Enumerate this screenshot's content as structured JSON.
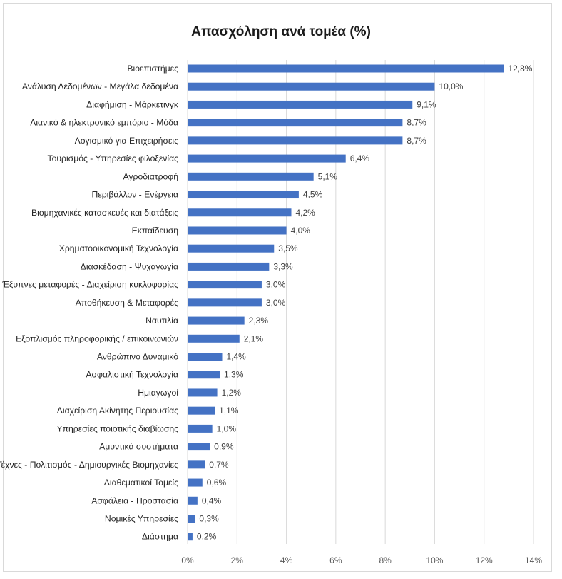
{
  "chart_data": {
    "type": "bar",
    "orientation": "horizontal",
    "title": "Απασχόληση ανά τομέα (%)",
    "xlabel": "",
    "ylabel": "",
    "xlim": [
      0,
      14
    ],
    "x_ticks": [
      "0%",
      "2%",
      "4%",
      "6%",
      "8%",
      "10%",
      "12%",
      "14%"
    ],
    "x_tick_values": [
      0,
      2,
      4,
      6,
      8,
      10,
      12,
      14
    ],
    "grid": "vertical",
    "legend": "none",
    "bar_color": "#4472C4",
    "categories": [
      "Βιοεπιστήμες",
      "Ανάλυση Δεδομένων - Μεγάλα δεδομένα",
      "Διαφήμιση - Μάρκετινγκ",
      "Λιανικό & ηλεκτρονικό εμπόριο - Μόδα",
      "Λογισμικό για Επιχειρήσεις",
      "Τουρισμός - Υπηρεσίες φιλοξενίας",
      "Αγροδιατροφή",
      "Περιβάλλον - Ενέργεια",
      "Βιομηχανικές κατασκευές και διατάξεις",
      "Εκπαίδευση",
      "Χρηματοοικονομική Τεχνολογία",
      "Διασκέδαση - Ψυχαγωγία",
      "Έξυπνες μεταφορές - Διαχείριση κυκλοφορίας",
      "Αποθήκευση & Μεταφορές",
      "Ναυτιλία",
      "Εξοπλισμός πληροφορικής / επικοινωνιών",
      "Ανθρώπινο Δυναμικό",
      "Ασφαλιστική Τεχνολογία",
      "Ημιαγωγοί",
      "Διαχείριση Ακίνητης Περιουσίας",
      "Υπηρεσίες ποιοτικής διαβίωσης",
      "Αμυντικά συστήματα",
      "Τέχνες - Πολιτισμός - Δημιουργικές Βιομηχανίες",
      "Διαθεματικοί Τομείς",
      "Ασφάλεια - Προστασία",
      "Νομικές Υπηρεσίες",
      "Διάστημα"
    ],
    "values": [
      12.8,
      10.0,
      9.1,
      8.7,
      8.7,
      6.4,
      5.1,
      4.5,
      4.2,
      4.0,
      3.5,
      3.3,
      3.0,
      3.0,
      2.3,
      2.1,
      1.4,
      1.3,
      1.2,
      1.1,
      1.0,
      0.9,
      0.7,
      0.6,
      0.4,
      0.3,
      0.2
    ],
    "value_labels": [
      "12,8%",
      "10,0%",
      "9,1%",
      "8,7%",
      "8,7%",
      "6,4%",
      "5,1%",
      "4,5%",
      "4,2%",
      "4,0%",
      "3,5%",
      "3,3%",
      "3,0%",
      "3,0%",
      "2,3%",
      "2,1%",
      "1,4%",
      "1,3%",
      "1,2%",
      "1,1%",
      "1,0%",
      "0,9%",
      "0,7%",
      "0,6%",
      "0,4%",
      "0,3%",
      "0,2%"
    ]
  }
}
